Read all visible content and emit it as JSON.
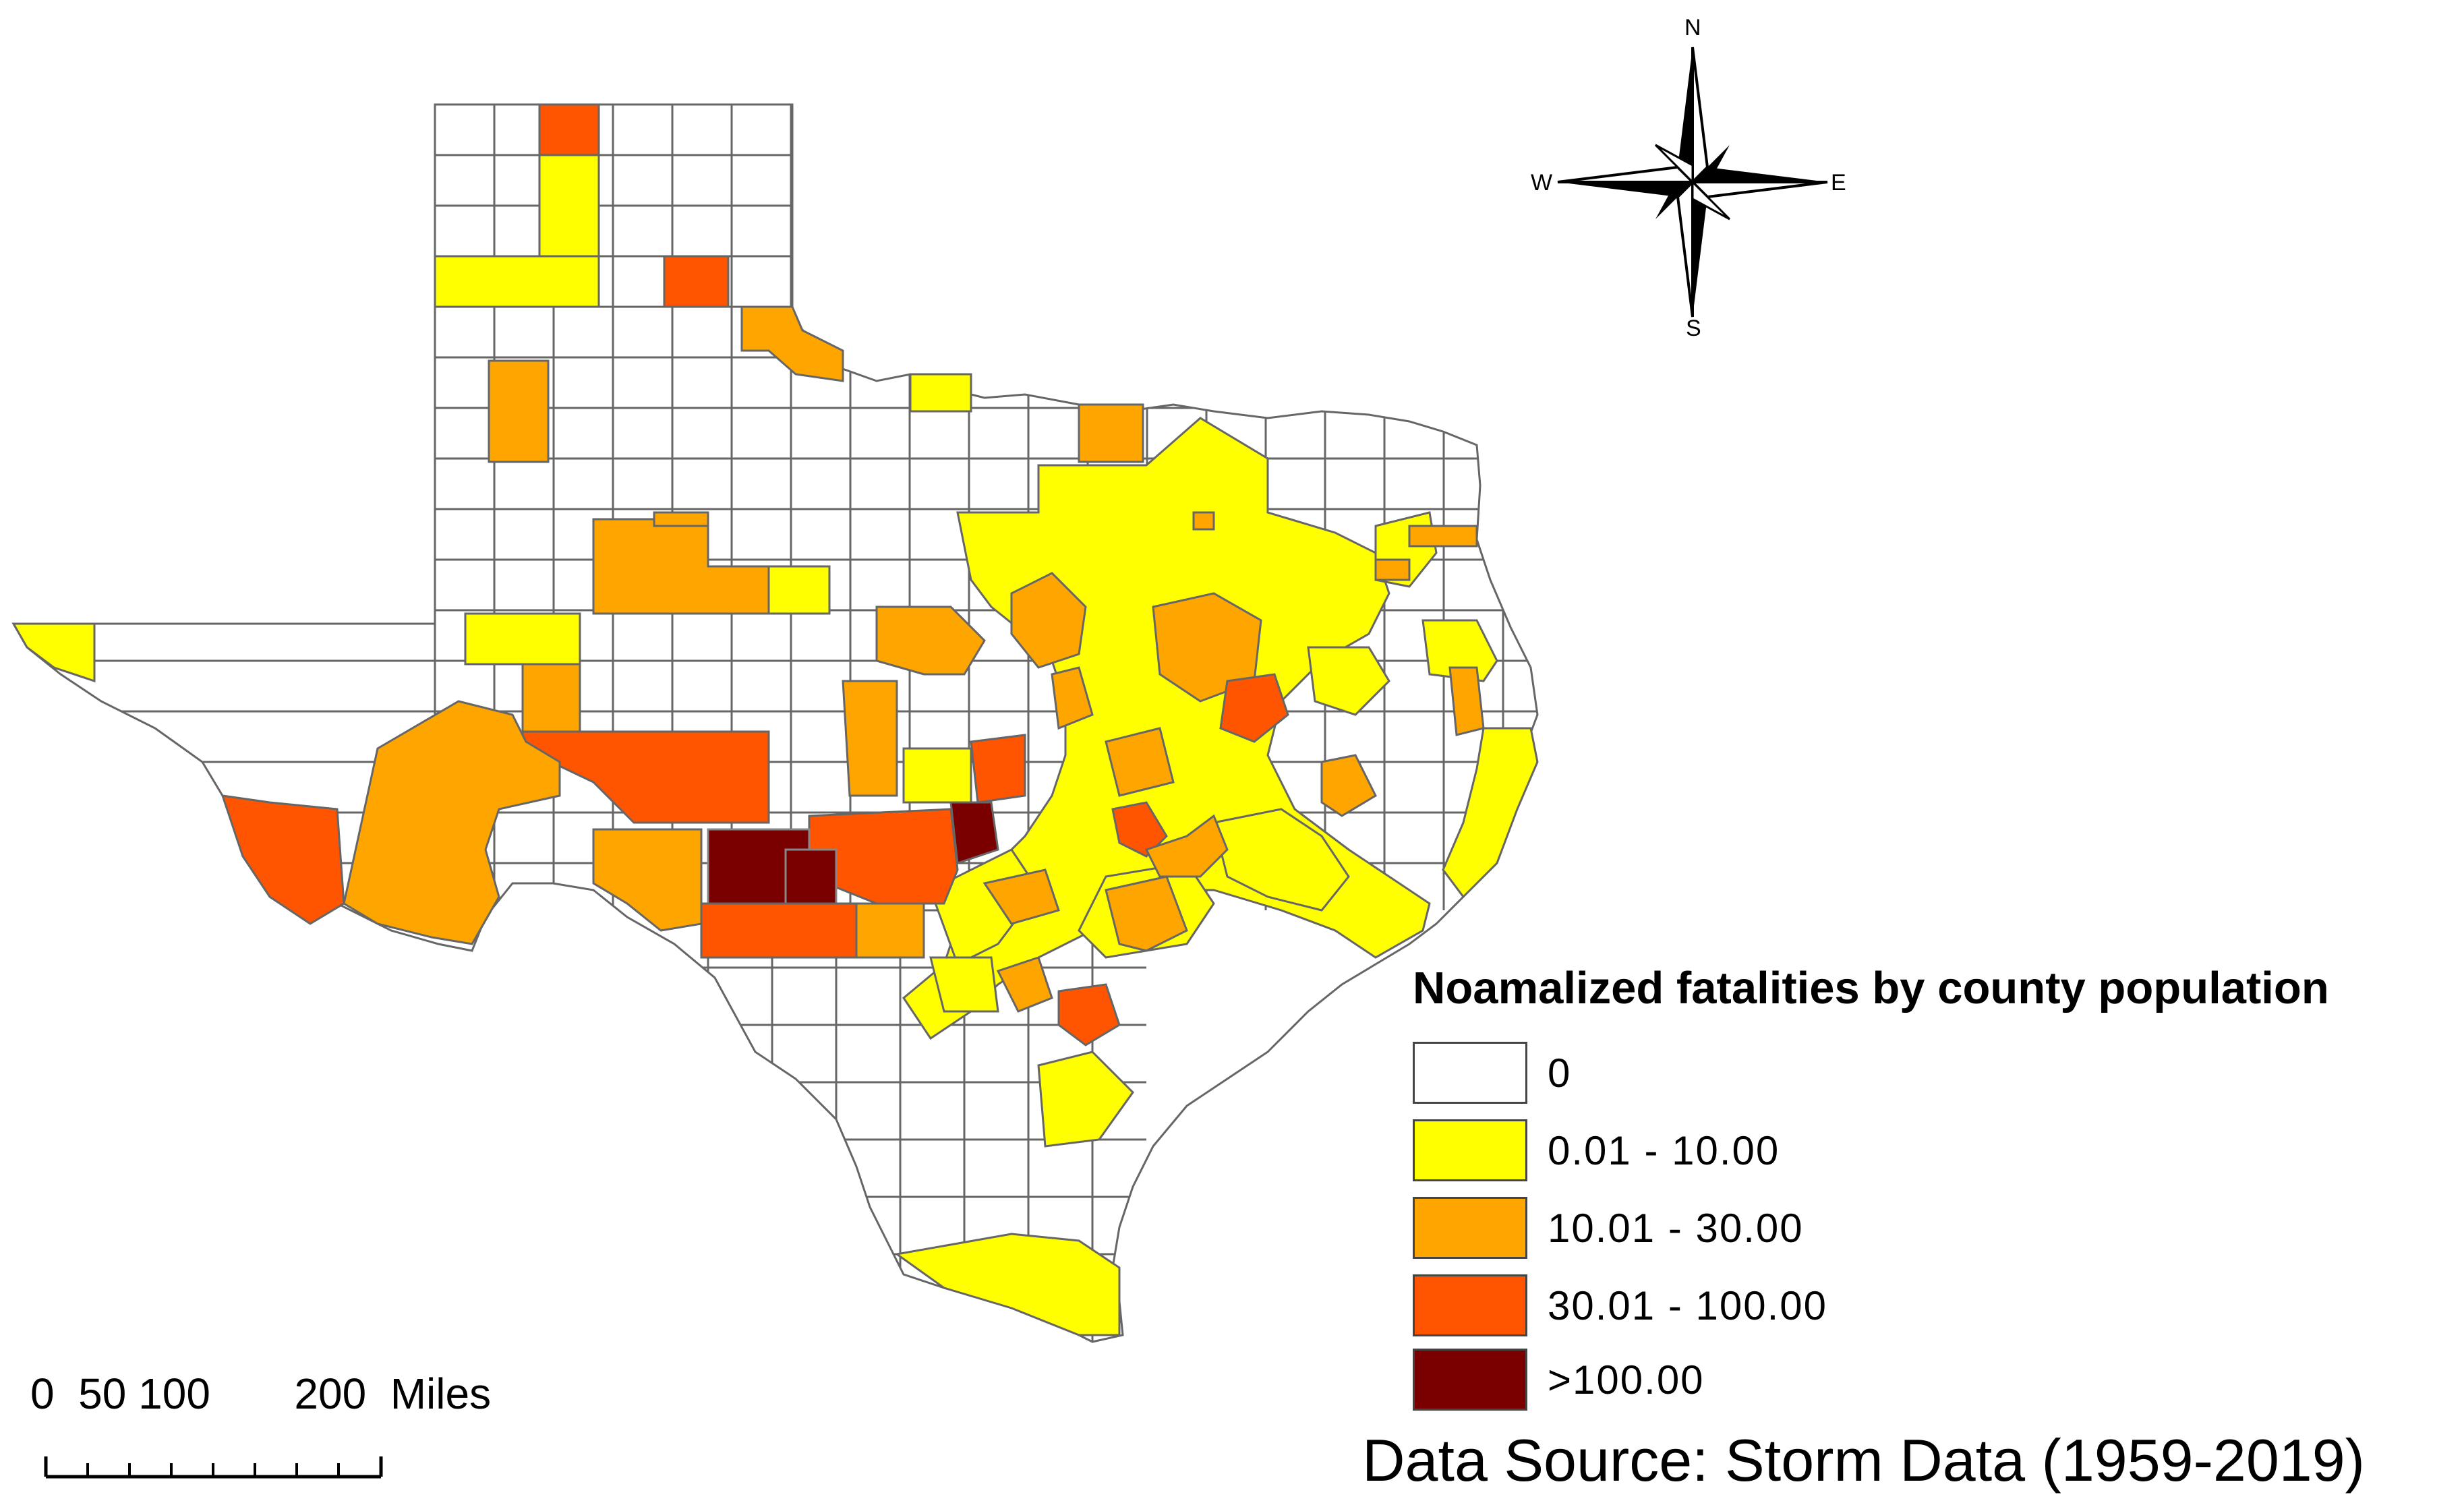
{
  "legend": {
    "title": "Noamalized fatalities by county population",
    "classes": [
      {
        "label": "0",
        "color": "#ffffff"
      },
      {
        "label": "0.01 - 10.00",
        "color": "#ffff00"
      },
      {
        "label": "10.01 - 30.00",
        "color": "#ffa500"
      },
      {
        "label": "30.01 - 100.00",
        "color": "#ff5500"
      },
      {
        "label": ">100.00",
        "color": "#7a0000"
      }
    ]
  },
  "source": "Data Source: Storm Data (1959-2019)",
  "scale_bar": {
    "ticks": [
      "0",
      "50",
      "100",
      "200"
    ],
    "unit": "Miles"
  },
  "compass": {
    "n": "N",
    "s": "S",
    "e": "E",
    "w": "W"
  },
  "colors": {
    "outline": "#666666",
    "class_0": "#ffffff",
    "class_1": "#ffff00",
    "class_2": "#ffa500",
    "class_3": "#ff5500",
    "class_4": "#7a0000"
  }
}
